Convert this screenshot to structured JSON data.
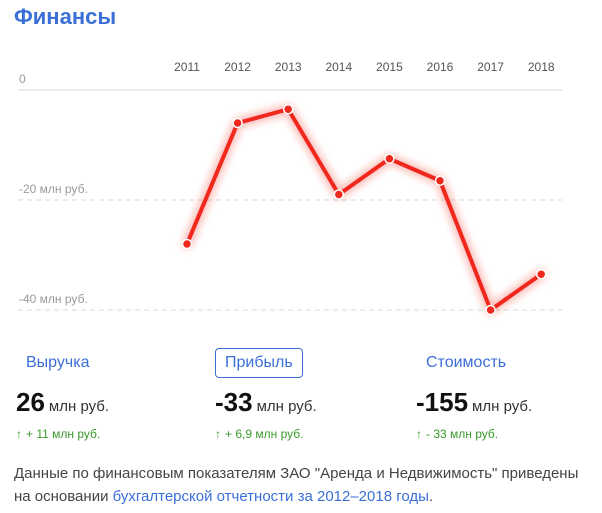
{
  "title": "Финансы",
  "chart_data": {
    "type": "line",
    "categories": [
      "2011",
      "2012",
      "2013",
      "2014",
      "2015",
      "2016",
      "2017",
      "2018"
    ],
    "series": [
      {
        "values": [
          -28,
          -6,
          -3.5,
          -19,
          -12.5,
          -16.5,
          -40,
          -33.5
        ]
      }
    ],
    "ylim": [
      -40,
      0
    ],
    "yticks": [
      {
        "value": 0,
        "label": "0"
      },
      {
        "value": -20,
        "label": "-20 млн руб."
      },
      {
        "value": -40,
        "label": "-40 млн руб."
      }
    ],
    "grid": true,
    "colors": {
      "line": "#f0271b",
      "grid": "#d9d9d9",
      "axis_text": "#9a9a9a"
    }
  },
  "metrics": [
    {
      "name": "Выручка",
      "value": "26",
      "unit": "млн руб.",
      "delta": "+ 11 млн руб.",
      "active": false
    },
    {
      "name": "Прибыль",
      "value": "-33",
      "unit": "млн руб.",
      "delta": "+ 6,9 млн руб.",
      "active": true
    },
    {
      "name": "Стоимость",
      "value": "-155",
      "unit": "млн руб.",
      "delta": "- 33 млн руб.",
      "active": false
    }
  ],
  "note": {
    "text": "Данные по финансовым показателям ЗАО \"Аренда и Недвижимость\" приведены на основании ",
    "link": "бухгалтерской отчетности за 2012–2018 годы",
    "end": "."
  },
  "colors": {
    "accent": "#3b6fd8",
    "positive": "#3a9a2c"
  }
}
